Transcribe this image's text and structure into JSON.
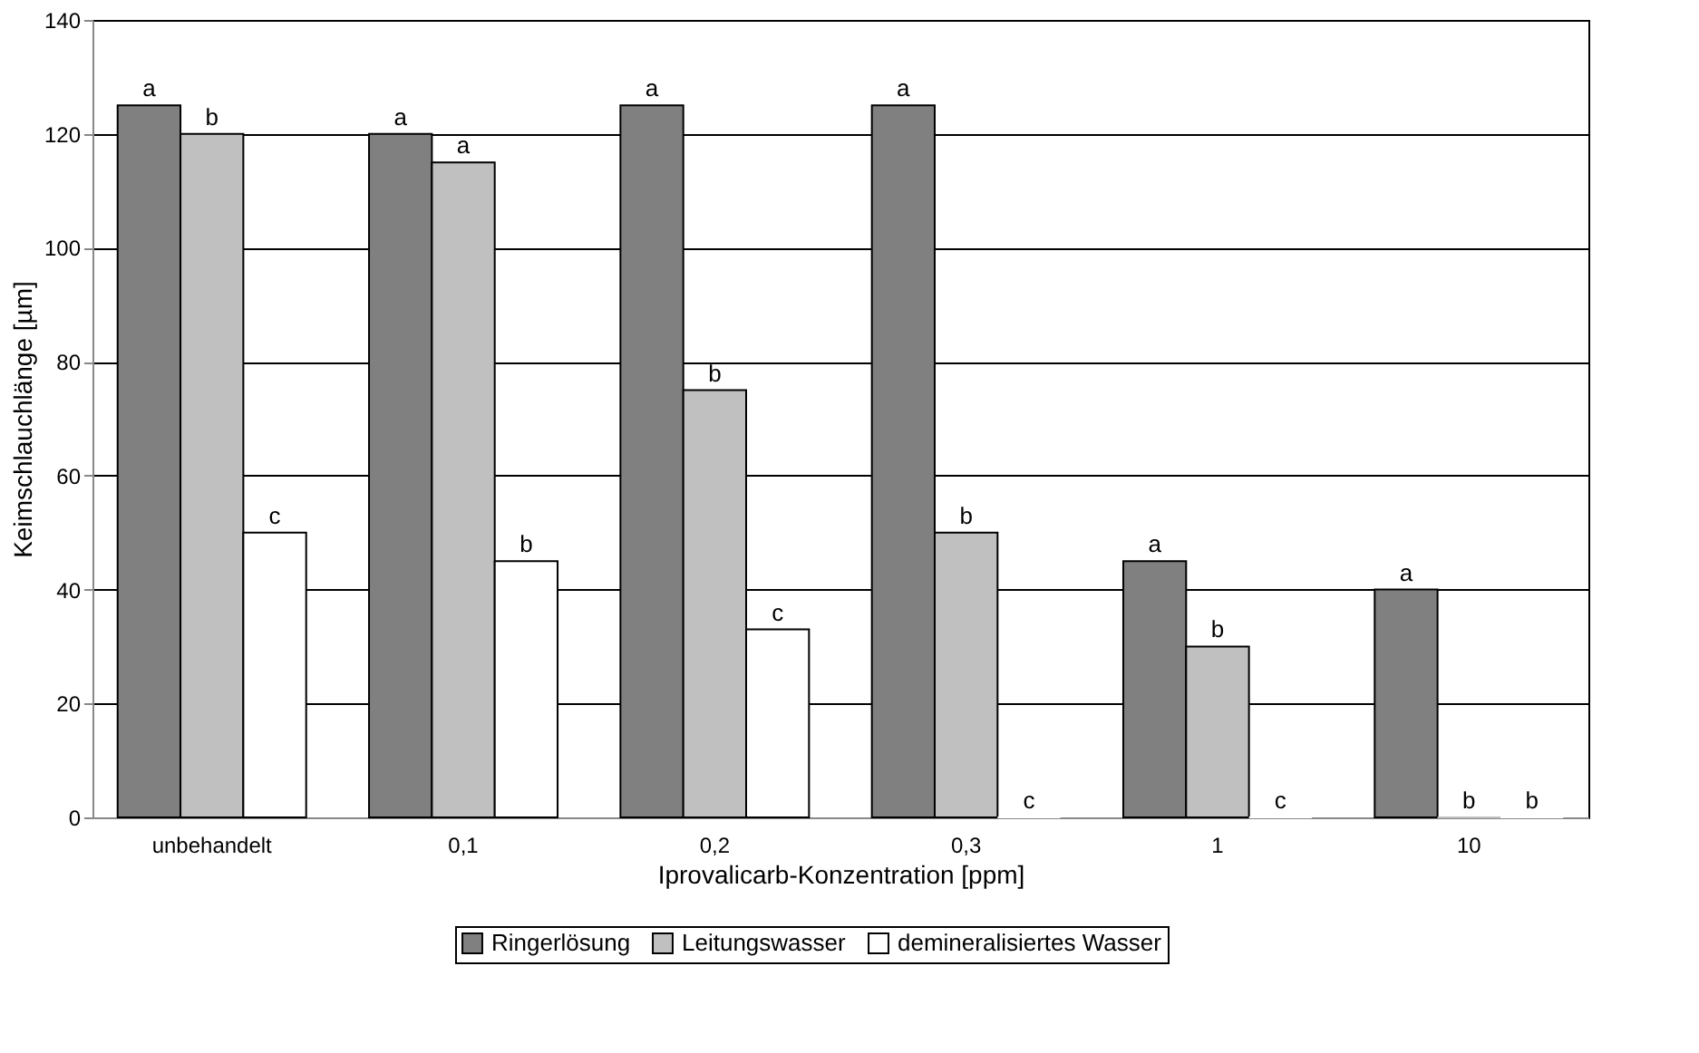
{
  "chart_data": {
    "type": "bar",
    "xlabel": "Iprovalicarb-Konzentration [ppm]",
    "ylabel": "Keimschlauchlänge [µm]",
    "categories": [
      "unbehandelt",
      "0,1",
      "0,2",
      "0,3",
      "1",
      "10"
    ],
    "series": [
      {
        "name": "Ringerlösung",
        "color": "#808080",
        "values": [
          125,
          120,
          125,
          125,
          45,
          40
        ],
        "value_labels": [
          "a",
          "a",
          "a",
          "a",
          "a",
          "a"
        ]
      },
      {
        "name": "Leitungswasser",
        "color": "#c0c0c0",
        "values": [
          120,
          115,
          75,
          50,
          30,
          0
        ],
        "value_labels": [
          "b",
          "a",
          "b",
          "b",
          "b",
          "b"
        ]
      },
      {
        "name": "demineralisiertes Wasser",
        "color": "#ffffff",
        "values": [
          50,
          45,
          33,
          0,
          0,
          0
        ],
        "value_labels": [
          "c",
          "b",
          "c",
          "c",
          "c",
          "b"
        ]
      }
    ],
    "ylim": [
      0,
      140
    ],
    "yticks": [
      0,
      20,
      40,
      60,
      80,
      100,
      120,
      140
    ],
    "grid": "y",
    "legend": "bottom"
  }
}
